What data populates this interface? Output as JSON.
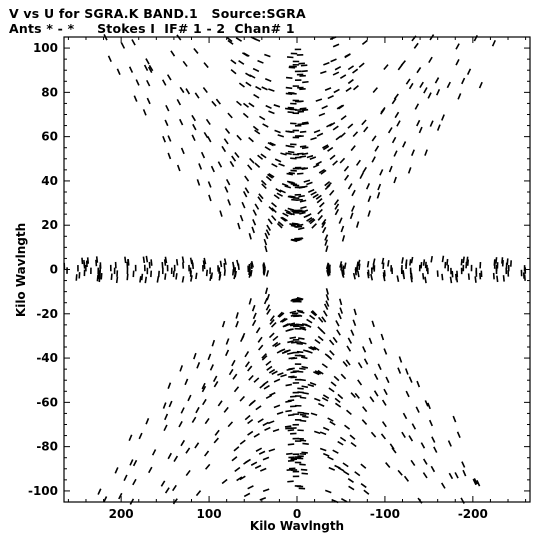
{
  "header": {
    "title_line1": "V vs U for SGRA.K BAND.1   Source:SGRA",
    "title_line2": "Ants * - *     Stokes I  IF# 1 - 2  Chan# 1"
  },
  "chart_data": {
    "type": "scatter",
    "xlabel": "Kilo Wavlngth",
    "ylabel": "Kilo Wavlngth",
    "xlim": [
      265,
      -265
    ],
    "ylim": [
      -105,
      105
    ],
    "x_ticks": [
      200,
      100,
      0,
      -100,
      -200
    ],
    "x_tick_labels": [
      "200",
      "100",
      "0",
      "-100",
      "-200"
    ],
    "y_ticks": [
      -100,
      -80,
      -60,
      -40,
      -20,
      0,
      20,
      40,
      60,
      80,
      100
    ],
    "y_tick_labels": [
      "-100",
      "-80",
      "-60",
      "-40",
      "-20",
      "0",
      "20",
      "40",
      "60",
      "80",
      "100"
    ],
    "marker_color": "#000000",
    "grid": false,
    "tracks": [
      {
        "arm_angle_deg": 30,
        "position_angle_deg": 30,
        "max_radius_klambda": 265
      },
      {
        "arm_angle_deg": 60,
        "position_angle_deg": 60,
        "max_radius_klambda": 200
      },
      {
        "arm_angle_deg": 90,
        "position_angle_deg": 90,
        "max_radius_klambda": 100
      },
      {
        "arm_angle_deg": 120,
        "position_angle_deg": 120,
        "max_radius_klambda": 200
      },
      {
        "arm_angle_deg": 150,
        "position_angle_deg": 150,
        "max_radius_klambda": 265
      },
      {
        "arm_angle_deg": 0,
        "position_angle_deg": 0,
        "max_radius_klambda": 265
      }
    ]
  }
}
